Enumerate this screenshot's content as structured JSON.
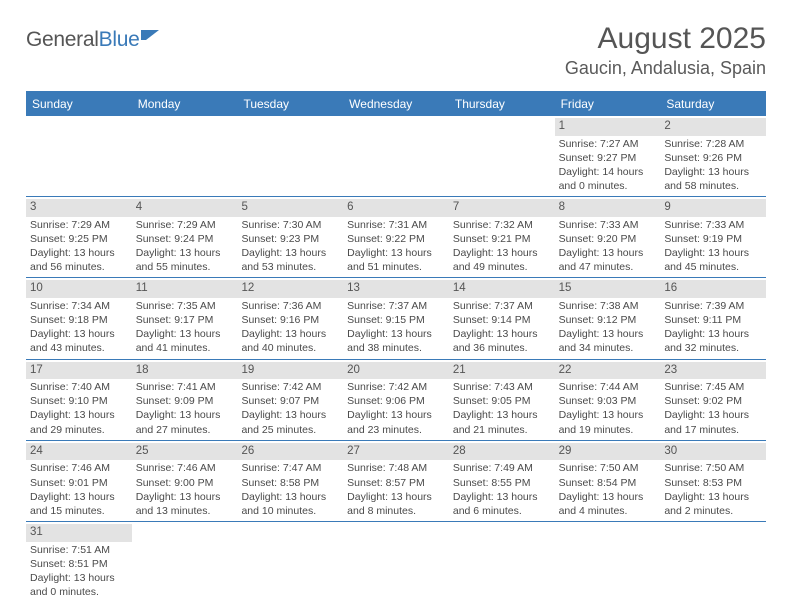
{
  "logo": {
    "part1": "General",
    "part2": "Blue"
  },
  "title": "August 2025",
  "location": "Gaucin, Andalusia, Spain",
  "colors": {
    "accent": "#3a7ab8",
    "header_bg": "#3a7ab8",
    "daynum_bg": "#e3e3e3",
    "text": "#4a4a4a",
    "page_bg": "#ffffff"
  },
  "weekdays": [
    "Sunday",
    "Monday",
    "Tuesday",
    "Wednesday",
    "Thursday",
    "Friday",
    "Saturday"
  ],
  "weeks": [
    [
      {
        "n": "",
        "empty": true
      },
      {
        "n": "",
        "empty": true
      },
      {
        "n": "",
        "empty": true
      },
      {
        "n": "",
        "empty": true
      },
      {
        "n": "",
        "empty": true
      },
      {
        "n": "1",
        "sunrise": "Sunrise: 7:27 AM",
        "sunset": "Sunset: 9:27 PM",
        "d1": "Daylight: 14 hours",
        "d2": "and 0 minutes."
      },
      {
        "n": "2",
        "sunrise": "Sunrise: 7:28 AM",
        "sunset": "Sunset: 9:26 PM",
        "d1": "Daylight: 13 hours",
        "d2": "and 58 minutes."
      }
    ],
    [
      {
        "n": "3",
        "sunrise": "Sunrise: 7:29 AM",
        "sunset": "Sunset: 9:25 PM",
        "d1": "Daylight: 13 hours",
        "d2": "and 56 minutes."
      },
      {
        "n": "4",
        "sunrise": "Sunrise: 7:29 AM",
        "sunset": "Sunset: 9:24 PM",
        "d1": "Daylight: 13 hours",
        "d2": "and 55 minutes."
      },
      {
        "n": "5",
        "sunrise": "Sunrise: 7:30 AM",
        "sunset": "Sunset: 9:23 PM",
        "d1": "Daylight: 13 hours",
        "d2": "and 53 minutes."
      },
      {
        "n": "6",
        "sunrise": "Sunrise: 7:31 AM",
        "sunset": "Sunset: 9:22 PM",
        "d1": "Daylight: 13 hours",
        "d2": "and 51 minutes."
      },
      {
        "n": "7",
        "sunrise": "Sunrise: 7:32 AM",
        "sunset": "Sunset: 9:21 PM",
        "d1": "Daylight: 13 hours",
        "d2": "and 49 minutes."
      },
      {
        "n": "8",
        "sunrise": "Sunrise: 7:33 AM",
        "sunset": "Sunset: 9:20 PM",
        "d1": "Daylight: 13 hours",
        "d2": "and 47 minutes."
      },
      {
        "n": "9",
        "sunrise": "Sunrise: 7:33 AM",
        "sunset": "Sunset: 9:19 PM",
        "d1": "Daylight: 13 hours",
        "d2": "and 45 minutes."
      }
    ],
    [
      {
        "n": "10",
        "sunrise": "Sunrise: 7:34 AM",
        "sunset": "Sunset: 9:18 PM",
        "d1": "Daylight: 13 hours",
        "d2": "and 43 minutes."
      },
      {
        "n": "11",
        "sunrise": "Sunrise: 7:35 AM",
        "sunset": "Sunset: 9:17 PM",
        "d1": "Daylight: 13 hours",
        "d2": "and 41 minutes."
      },
      {
        "n": "12",
        "sunrise": "Sunrise: 7:36 AM",
        "sunset": "Sunset: 9:16 PM",
        "d1": "Daylight: 13 hours",
        "d2": "and 40 minutes."
      },
      {
        "n": "13",
        "sunrise": "Sunrise: 7:37 AM",
        "sunset": "Sunset: 9:15 PM",
        "d1": "Daylight: 13 hours",
        "d2": "and 38 minutes."
      },
      {
        "n": "14",
        "sunrise": "Sunrise: 7:37 AM",
        "sunset": "Sunset: 9:14 PM",
        "d1": "Daylight: 13 hours",
        "d2": "and 36 minutes."
      },
      {
        "n": "15",
        "sunrise": "Sunrise: 7:38 AM",
        "sunset": "Sunset: 9:12 PM",
        "d1": "Daylight: 13 hours",
        "d2": "and 34 minutes."
      },
      {
        "n": "16",
        "sunrise": "Sunrise: 7:39 AM",
        "sunset": "Sunset: 9:11 PM",
        "d1": "Daylight: 13 hours",
        "d2": "and 32 minutes."
      }
    ],
    [
      {
        "n": "17",
        "sunrise": "Sunrise: 7:40 AM",
        "sunset": "Sunset: 9:10 PM",
        "d1": "Daylight: 13 hours",
        "d2": "and 29 minutes."
      },
      {
        "n": "18",
        "sunrise": "Sunrise: 7:41 AM",
        "sunset": "Sunset: 9:09 PM",
        "d1": "Daylight: 13 hours",
        "d2": "and 27 minutes."
      },
      {
        "n": "19",
        "sunrise": "Sunrise: 7:42 AM",
        "sunset": "Sunset: 9:07 PM",
        "d1": "Daylight: 13 hours",
        "d2": "and 25 minutes."
      },
      {
        "n": "20",
        "sunrise": "Sunrise: 7:42 AM",
        "sunset": "Sunset: 9:06 PM",
        "d1": "Daylight: 13 hours",
        "d2": "and 23 minutes."
      },
      {
        "n": "21",
        "sunrise": "Sunrise: 7:43 AM",
        "sunset": "Sunset: 9:05 PM",
        "d1": "Daylight: 13 hours",
        "d2": "and 21 minutes."
      },
      {
        "n": "22",
        "sunrise": "Sunrise: 7:44 AM",
        "sunset": "Sunset: 9:03 PM",
        "d1": "Daylight: 13 hours",
        "d2": "and 19 minutes."
      },
      {
        "n": "23",
        "sunrise": "Sunrise: 7:45 AM",
        "sunset": "Sunset: 9:02 PM",
        "d1": "Daylight: 13 hours",
        "d2": "and 17 minutes."
      }
    ],
    [
      {
        "n": "24",
        "sunrise": "Sunrise: 7:46 AM",
        "sunset": "Sunset: 9:01 PM",
        "d1": "Daylight: 13 hours",
        "d2": "and 15 minutes."
      },
      {
        "n": "25",
        "sunrise": "Sunrise: 7:46 AM",
        "sunset": "Sunset: 9:00 PM",
        "d1": "Daylight: 13 hours",
        "d2": "and 13 minutes."
      },
      {
        "n": "26",
        "sunrise": "Sunrise: 7:47 AM",
        "sunset": "Sunset: 8:58 PM",
        "d1": "Daylight: 13 hours",
        "d2": "and 10 minutes."
      },
      {
        "n": "27",
        "sunrise": "Sunrise: 7:48 AM",
        "sunset": "Sunset: 8:57 PM",
        "d1": "Daylight: 13 hours",
        "d2": "and 8 minutes."
      },
      {
        "n": "28",
        "sunrise": "Sunrise: 7:49 AM",
        "sunset": "Sunset: 8:55 PM",
        "d1": "Daylight: 13 hours",
        "d2": "and 6 minutes."
      },
      {
        "n": "29",
        "sunrise": "Sunrise: 7:50 AM",
        "sunset": "Sunset: 8:54 PM",
        "d1": "Daylight: 13 hours",
        "d2": "and 4 minutes."
      },
      {
        "n": "30",
        "sunrise": "Sunrise: 7:50 AM",
        "sunset": "Sunset: 8:53 PM",
        "d1": "Daylight: 13 hours",
        "d2": "and 2 minutes."
      }
    ],
    [
      {
        "n": "31",
        "sunrise": "Sunrise: 7:51 AM",
        "sunset": "Sunset: 8:51 PM",
        "d1": "Daylight: 13 hours",
        "d2": "and 0 minutes."
      },
      {
        "n": "",
        "empty": true
      },
      {
        "n": "",
        "empty": true
      },
      {
        "n": "",
        "empty": true
      },
      {
        "n": "",
        "empty": true
      },
      {
        "n": "",
        "empty": true
      },
      {
        "n": "",
        "empty": true
      }
    ]
  ]
}
